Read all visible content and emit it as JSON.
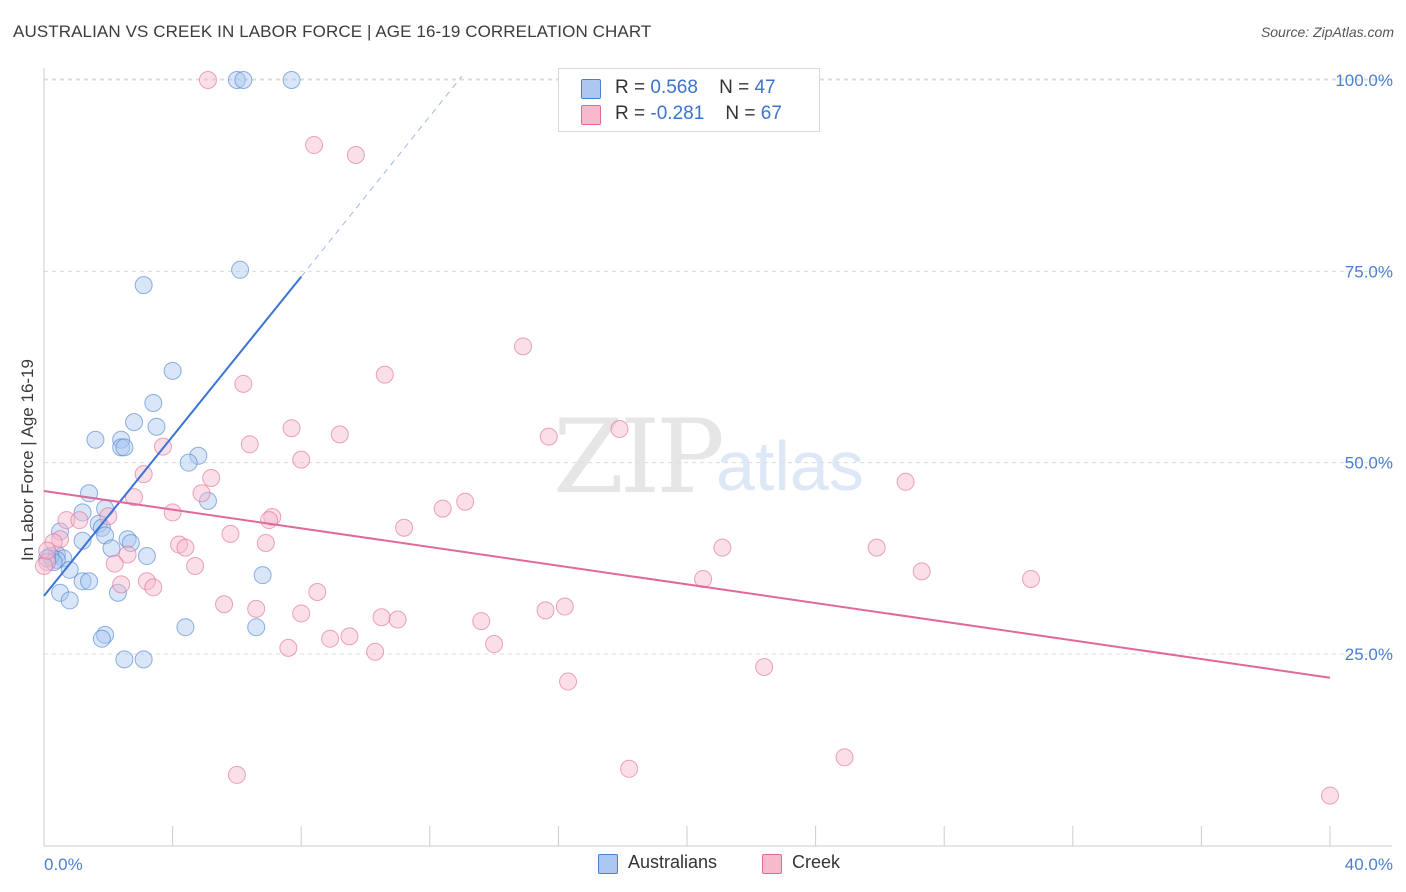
{
  "title": "AUSTRALIAN VS CREEK IN LABOR FORCE | AGE 16-19 CORRELATION CHART",
  "source": "Source: ZipAtlas.com",
  "watermark": {
    "zip": "ZIP",
    "atlas": "atlas"
  },
  "legend": {
    "r_label": "R =",
    "n_label": "N =",
    "rows": [
      {
        "r": "0.568",
        "n": "47",
        "color": "#aac8f0"
      },
      {
        "r": "-0.281",
        "n": "67",
        "color": "#f7b9cc"
      }
    ]
  },
  "bottom_legend": [
    "Australians",
    "Creek"
  ],
  "chart_data": {
    "type": "scatter",
    "title": "AUSTRALIAN VS CREEK IN LABOR FORCE | AGE 16-19 CORRELATION CHART",
    "xlabel": "",
    "ylabel": "In Labor Force | Age 16-19",
    "xlim": [
      0,
      40
    ],
    "ylim": [
      0,
      103
    ],
    "x_tick_labels": [
      "0.0%",
      "40.0%"
    ],
    "y_ticks": [
      25,
      50,
      75,
      100
    ],
    "y_tick_labels": [
      "25.0%",
      "50.0%",
      "75.0%",
      "100.0%"
    ],
    "grid": "horizontal dashed",
    "legend_position": "top-center",
    "series": [
      {
        "name": "Australians",
        "color": "#4a7fd0",
        "fill": "#aac8f0",
        "r": 0.568,
        "n": 47,
        "trend": {
          "x": [
            0,
            8
          ],
          "y": [
            32.6,
            74.3
          ],
          "dashed_to": [
            13,
            100.5
          ]
        },
        "points": [
          [
            6.0,
            100
          ],
          [
            6.2,
            100
          ],
          [
            7.7,
            100
          ],
          [
            6.1,
            75.2
          ],
          [
            3.1,
            73.2
          ],
          [
            4.0,
            62.0
          ],
          [
            3.4,
            57.8
          ],
          [
            2.8,
            55.3
          ],
          [
            3.5,
            54.7
          ],
          [
            1.6,
            53.0
          ],
          [
            2.4,
            53.0
          ],
          [
            2.4,
            52.0
          ],
          [
            2.5,
            52.0
          ],
          [
            4.8,
            50.9
          ],
          [
            4.5,
            50.0
          ],
          [
            1.4,
            46.0
          ],
          [
            5.1,
            45.0
          ],
          [
            1.9,
            44.0
          ],
          [
            1.2,
            43.5
          ],
          [
            1.7,
            42.0
          ],
          [
            1.8,
            41.5
          ],
          [
            0.5,
            41.0
          ],
          [
            1.9,
            40.5
          ],
          [
            2.6,
            40.0
          ],
          [
            2.7,
            39.5
          ],
          [
            1.2,
            39.8
          ],
          [
            2.1,
            38.8
          ],
          [
            0.4,
            38.0
          ],
          [
            0.6,
            37.5
          ],
          [
            0.4,
            37.3
          ],
          [
            0.2,
            37.8
          ],
          [
            0.3,
            37.0
          ],
          [
            3.2,
            37.8
          ],
          [
            0.8,
            36.0
          ],
          [
            1.2,
            34.5
          ],
          [
            1.4,
            34.5
          ],
          [
            6.8,
            35.3
          ],
          [
            0.5,
            33.0
          ],
          [
            2.3,
            33.0
          ],
          [
            0.8,
            32.0
          ],
          [
            6.6,
            28.5
          ],
          [
            4.4,
            28.5
          ],
          [
            1.9,
            27.5
          ],
          [
            1.8,
            27.0
          ],
          [
            2.5,
            24.3
          ],
          [
            3.1,
            24.3
          ],
          [
            0.1,
            37.5
          ]
        ]
      },
      {
        "name": "Creek",
        "color": "#e06a96",
        "fill": "#f7b9cc",
        "r": -0.281,
        "n": 67,
        "trend": {
          "x": [
            0,
            40
          ],
          "y": [
            46.3,
            21.9
          ]
        },
        "points": [
          [
            5.1,
            100
          ],
          [
            8.4,
            91.5
          ],
          [
            9.7,
            90.2
          ],
          [
            14.9,
            65.2
          ],
          [
            10.6,
            61.5
          ],
          [
            6.2,
            60.3
          ],
          [
            17.9,
            54.4
          ],
          [
            7.7,
            54.5
          ],
          [
            9.2,
            53.7
          ],
          [
            15.7,
            53.4
          ],
          [
            6.4,
            52.4
          ],
          [
            3.7,
            52.1
          ],
          [
            8.0,
            50.4
          ],
          [
            3.1,
            48.5
          ],
          [
            5.2,
            48.0
          ],
          [
            4.9,
            46.0
          ],
          [
            2.8,
            45.5
          ],
          [
            26.8,
            47.5
          ],
          [
            13.1,
            44.9
          ],
          [
            12.4,
            44.0
          ],
          [
            4.0,
            43.5
          ],
          [
            7.1,
            42.9
          ],
          [
            7.0,
            42.5
          ],
          [
            2.0,
            43.0
          ],
          [
            11.2,
            41.5
          ],
          [
            0.7,
            42.5
          ],
          [
            1.1,
            42.5
          ],
          [
            5.8,
            40.7
          ],
          [
            0.5,
            40.0
          ],
          [
            0.3,
            39.6
          ],
          [
            4.2,
            39.3
          ],
          [
            4.4,
            38.9
          ],
          [
            6.9,
            39.5
          ],
          [
            21.1,
            38.9
          ],
          [
            25.9,
            38.9
          ],
          [
            2.6,
            38.0
          ],
          [
            2.2,
            36.8
          ],
          [
            4.7,
            36.5
          ],
          [
            0.1,
            37.0
          ],
          [
            27.3,
            35.8
          ],
          [
            20.5,
            34.8
          ],
          [
            3.2,
            34.5
          ],
          [
            2.4,
            34.1
          ],
          [
            3.4,
            33.7
          ],
          [
            8.5,
            33.1
          ],
          [
            5.6,
            31.5
          ],
          [
            16.2,
            31.2
          ],
          [
            6.6,
            30.9
          ],
          [
            15.6,
            30.7
          ],
          [
            8.0,
            30.3
          ],
          [
            10.5,
            29.8
          ],
          [
            11.0,
            29.5
          ],
          [
            13.6,
            29.3
          ],
          [
            9.5,
            27.3
          ],
          [
            8.9,
            27.0
          ],
          [
            14.0,
            26.3
          ],
          [
            7.6,
            25.8
          ],
          [
            10.3,
            25.3
          ],
          [
            22.4,
            23.3
          ],
          [
            16.3,
            21.4
          ],
          [
            30.7,
            34.8
          ],
          [
            6.0,
            9.2
          ],
          [
            18.2,
            10.0
          ],
          [
            24.9,
            11.5
          ],
          [
            40.0,
            6.5
          ],
          [
            0.0,
            36.5
          ],
          [
            0.1,
            38.5
          ]
        ]
      }
    ]
  }
}
